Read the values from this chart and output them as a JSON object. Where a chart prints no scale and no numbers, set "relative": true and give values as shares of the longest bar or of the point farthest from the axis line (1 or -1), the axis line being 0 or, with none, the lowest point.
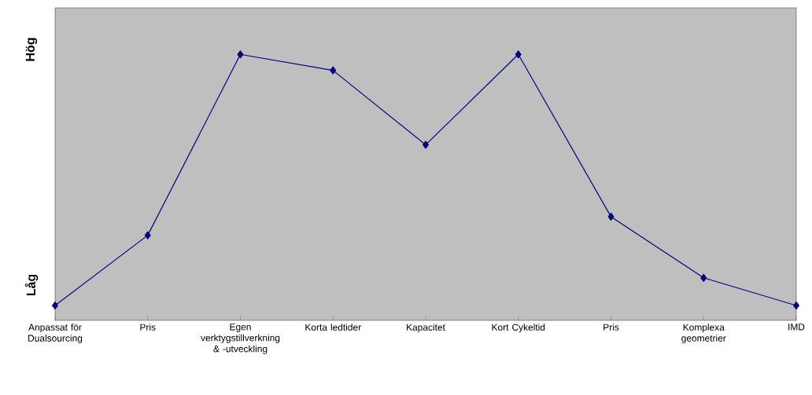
{
  "chart_data": {
    "type": "line",
    "relative": true,
    "categories": [
      "Anpassat för Dualsourcing",
      "Pris",
      "Egen verktygstillverkning & -utveckling",
      "Korta ledtider",
      "Kapacitet",
      "Kort Cykeltid",
      "Pris",
      "Komplexa geometrier",
      "IMD"
    ],
    "series": [
      {
        "color": "#000080",
        "values": [
          0.056,
          0.32,
          1,
          0.94,
          0.66,
          1,
          0.39,
          0.16,
          0.056
        ]
      }
    ],
    "annotations": [
      "Hög",
      "Låg"
    ],
    "marker": "diamond",
    "line_style": "solid"
  }
}
